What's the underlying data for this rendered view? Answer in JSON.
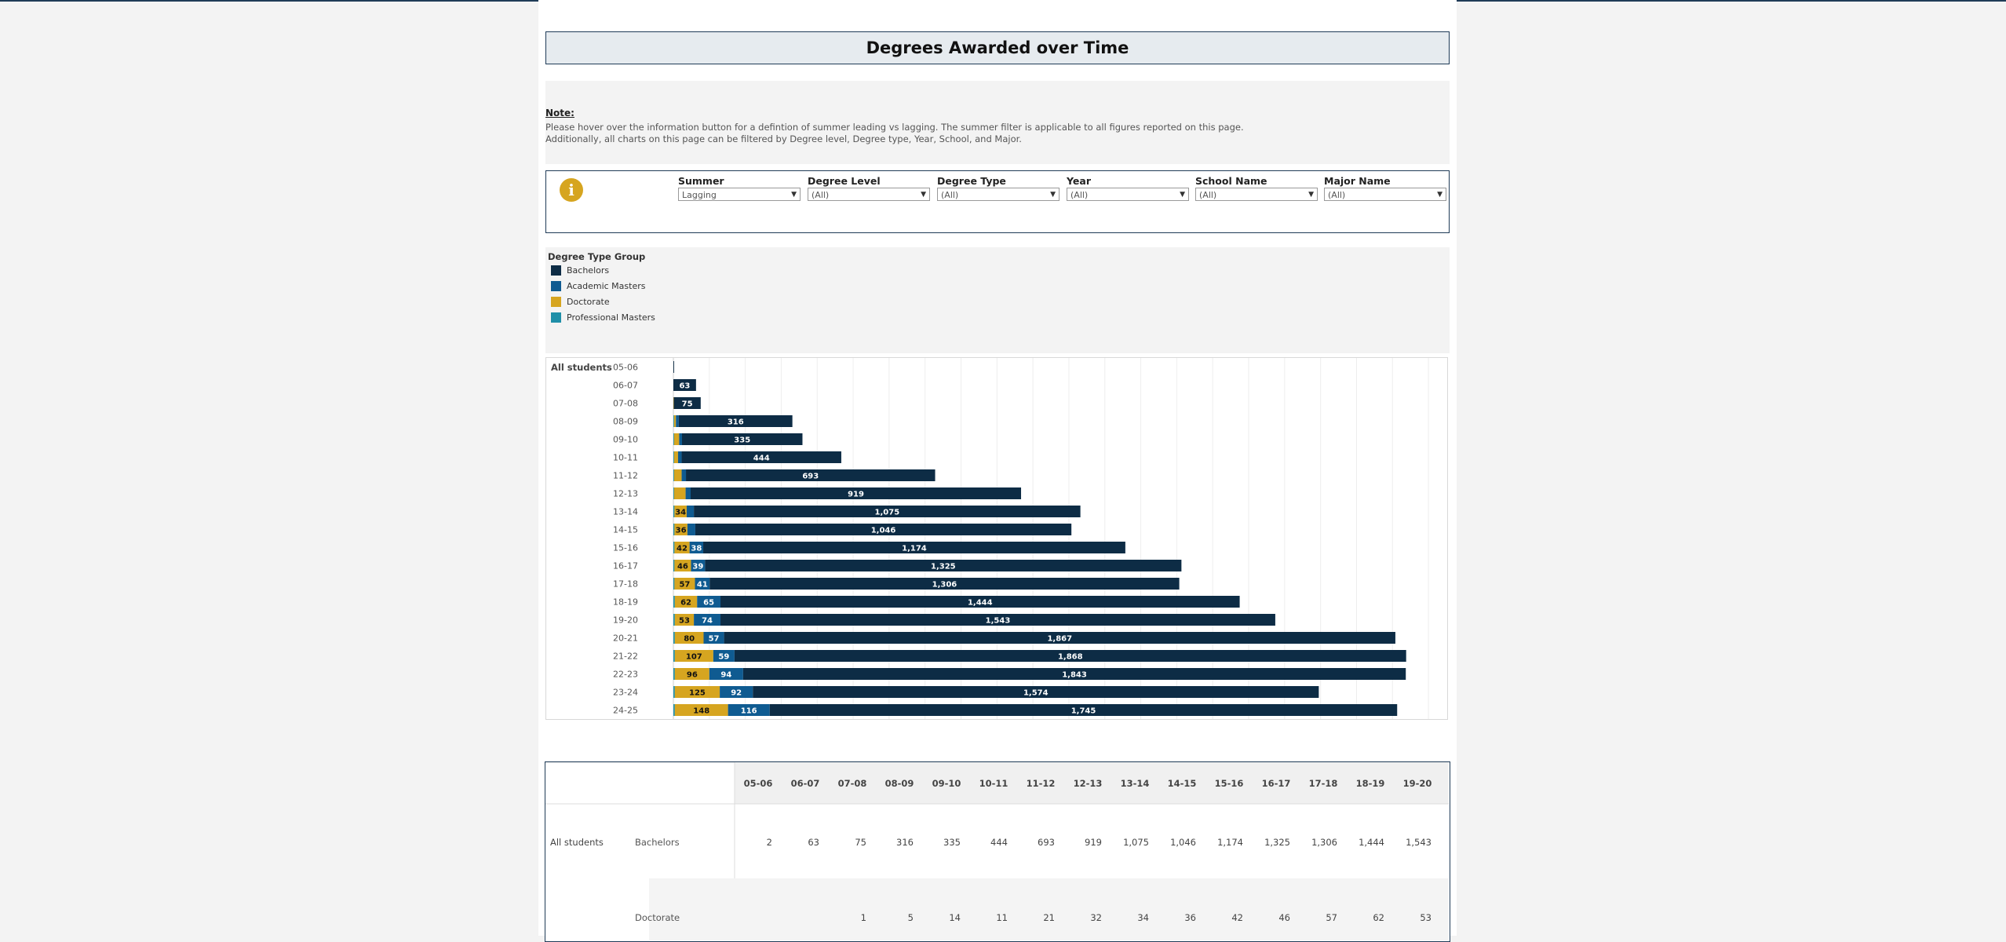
{
  "title": "Degrees Awarded over Time",
  "note": {
    "heading": "Note:",
    "line1": "Please hover over the information button for a defintion of summer leading vs lagging. The summer filter is applicable to all figures reported on this page.",
    "line2": "Additionally, all charts on this page can be filtered by  Degree level,  Degree type, Year, School, and Major."
  },
  "info_icon": "info-icon",
  "filters": [
    {
      "label": "Summer",
      "value": "Lagging"
    },
    {
      "label": "Degree Level",
      "value": "(All)"
    },
    {
      "label": "Degree Type",
      "value": "(All)"
    },
    {
      "label": "Year",
      "value": "(All)"
    },
    {
      "label": "School Name",
      "value": "(All)"
    },
    {
      "label": "Major Name",
      "value": "(All)"
    }
  ],
  "legend": {
    "title": "Degree Type Group",
    "items": [
      {
        "label": "Bachelors",
        "color": "#0d2c45"
      },
      {
        "label": "Academic Masters",
        "color": "#0f5b91"
      },
      {
        "label": "Doctorate",
        "color": "#d6a520"
      },
      {
        "label": "Professional Masters",
        "color": "#1f8fa8"
      }
    ]
  },
  "chart_data": {
    "type": "bar",
    "orientation": "horizontal",
    "stacked": true,
    "row_group": "All students",
    "categories": [
      "05-06",
      "06-07",
      "07-08",
      "08-09",
      "09-10",
      "10-11",
      "11-12",
      "12-13",
      "13-14",
      "14-15",
      "15-16",
      "16-17",
      "17-18",
      "18-19",
      "19-20",
      "20-21",
      "21-22",
      "22-23",
      "23-24",
      "24-25"
    ],
    "series": [
      {
        "name": "Professional Masters",
        "color": "#1f8fa8",
        "values": [
          0,
          0,
          0,
          2,
          2,
          2,
          2,
          2,
          3,
          3,
          3,
          3,
          3,
          4,
          4,
          4,
          4,
          4,
          4,
          4
        ]
      },
      {
        "name": "Doctorate",
        "color": "#d6a520",
        "values": [
          0,
          0,
          1,
          5,
          14,
          11,
          21,
          32,
          34,
          36,
          42,
          46,
          57,
          62,
          53,
          80,
          107,
          96,
          125,
          148
        ]
      },
      {
        "name": "Academic Masters",
        "color": "#0f5b91",
        "values": [
          0,
          0,
          0,
          8,
          8,
          10,
          12,
          14,
          20,
          22,
          38,
          39,
          41,
          65,
          74,
          57,
          59,
          94,
          92,
          116
        ]
      },
      {
        "name": "Bachelors",
        "color": "#0d2c45",
        "values": [
          2,
          63,
          75,
          316,
          335,
          444,
          693,
          919,
          1075,
          1046,
          1174,
          1325,
          1306,
          1444,
          1543,
          1867,
          1868,
          1843,
          1574,
          1745
        ]
      }
    ],
    "data_labels": {
      "Bachelors": [
        "",
        "63",
        "75",
        "316",
        "335",
        "444",
        "693",
        "919",
        "1,075",
        "1,046",
        "1,174",
        "1,325",
        "1,306",
        "1,444",
        "1,543",
        "1,867",
        "1,868",
        "1,843",
        "1,574",
        "1,745"
      ],
      "Doctorate": [
        "",
        "",
        "",
        "",
        "",
        "",
        "",
        "",
        "34",
        "36",
        "42",
        "46",
        "57",
        "62",
        "53",
        "80",
        "107",
        "96",
        "125",
        "148"
      ],
      "Academic Masters": [
        "",
        "",
        "",
        "",
        "",
        "",
        "",
        "",
        "",
        "",
        "38",
        "39",
        "41",
        "65",
        "74",
        "57",
        "59",
        "94",
        "92",
        "116"
      ]
    },
    "xlim": [
      0,
      2150
    ]
  },
  "table": {
    "columns": [
      "05-06",
      "06-07",
      "07-08",
      "08-09",
      "09-10",
      "10-11",
      "11-12",
      "12-13",
      "13-14",
      "14-15",
      "15-16",
      "16-17",
      "17-18",
      "18-19",
      "19-20"
    ],
    "group": "All students",
    "rows": [
      {
        "label": "Bachelors",
        "values": [
          "2",
          "63",
          "75",
          "316",
          "335",
          "444",
          "693",
          "919",
          "1,075",
          "1,046",
          "1,174",
          "1,325",
          "1,306",
          "1,444",
          "1,543"
        ]
      },
      {
        "label": "Doctorate",
        "values": [
          "",
          "",
          "1",
          "5",
          "14",
          "11",
          "21",
          "32",
          "34",
          "36",
          "42",
          "46",
          "57",
          "62",
          "53"
        ]
      }
    ]
  }
}
